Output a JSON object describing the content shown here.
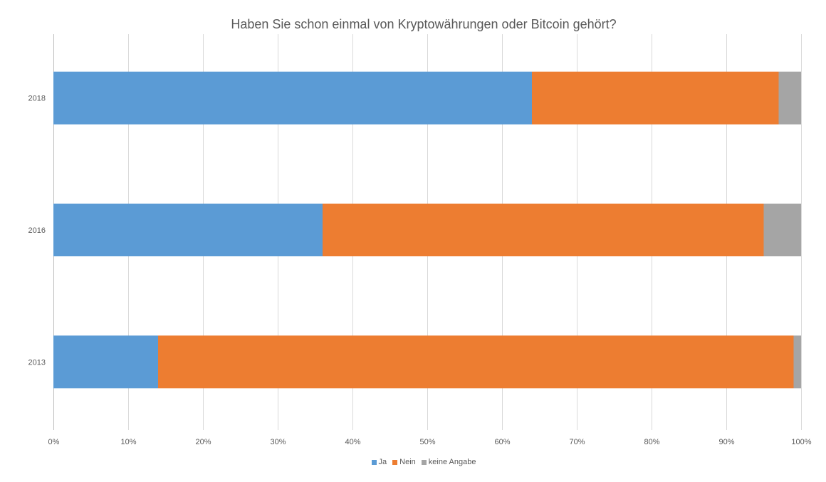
{
  "chart_data": {
    "type": "bar",
    "orientation": "horizontal",
    "stacked": "percent",
    "title": "Haben Sie schon einmal von Kryptowährungen oder Bitcoin gehört?",
    "categories": [
      "2018",
      "2016",
      "2013"
    ],
    "series": [
      {
        "name": "Ja",
        "color": "#5B9BD5",
        "values": [
          64,
          36,
          14
        ]
      },
      {
        "name": "Nein",
        "color": "#ED7D31",
        "values": [
          33,
          59,
          85
        ]
      },
      {
        "name": "keine Angabe",
        "color": "#A5A5A5",
        "values": [
          3,
          5,
          1
        ]
      }
    ],
    "xlim": [
      0,
      100
    ],
    "xticks": [
      "0%",
      "10%",
      "20%",
      "30%",
      "40%",
      "50%",
      "60%",
      "70%",
      "80%",
      "90%",
      "100%"
    ],
    "grid": true,
    "legend": "bottom"
  }
}
